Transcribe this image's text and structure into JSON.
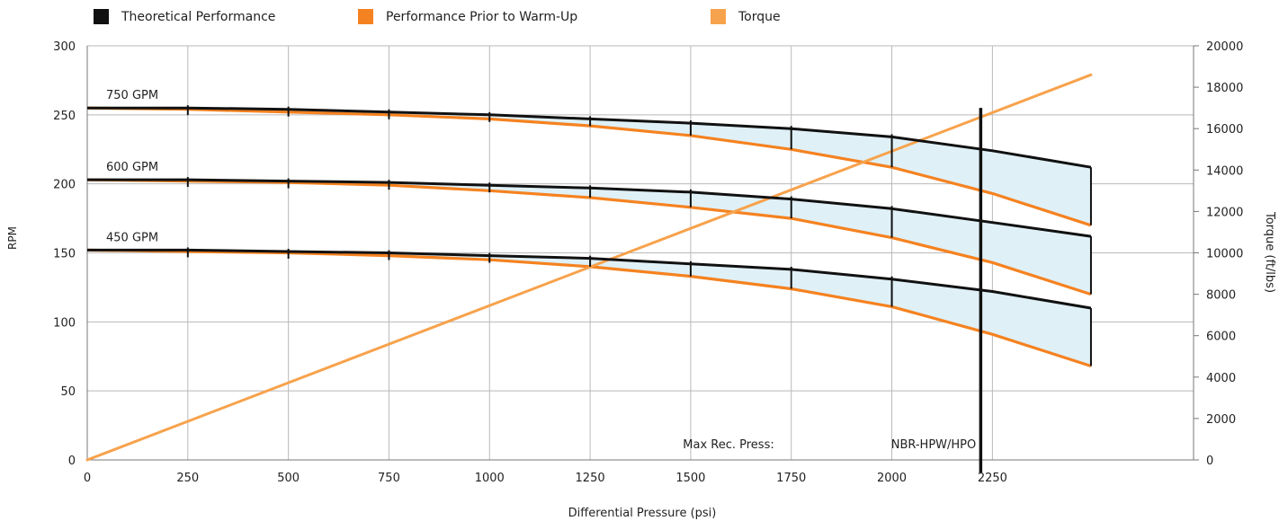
{
  "legend": [
    {
      "label": "Theoretical Performance",
      "color": "#111111"
    },
    {
      "label": "Performance Prior to Warm-Up",
      "color": "#f58220"
    },
    {
      "label": "Torque",
      "color": "#f7a24c"
    }
  ],
  "chart_data": {
    "type": "line",
    "xlabel": "Differential Pressure (psi)",
    "ylabel": "RPM",
    "y2label": "Torque (ft/lbs)",
    "xlim": [
      0,
      2750
    ],
    "ylim": [
      0,
      300
    ],
    "y2lim": [
      0,
      20000
    ],
    "x_ticks": [
      0,
      250,
      500,
      750,
      1000,
      1250,
      1500,
      1750,
      2000,
      2250
    ],
    "y_ticks": [
      0,
      50,
      100,
      150,
      200,
      250,
      300
    ],
    "y2_ticks": [
      0,
      2000,
      4000,
      6000,
      8000,
      10000,
      12000,
      14000,
      16000,
      18000,
      20000
    ],
    "grid": true,
    "legend_position": "top",
    "colors": {
      "theoretical": "#111111",
      "warmup": "#f58220",
      "torque": "#f7a24c",
      "band": "#dff0f7",
      "grid": "#b9b9b9"
    },
    "series": [
      {
        "flow_label": "750 GPM",
        "theoretical": {
          "x": [
            0,
            250,
            500,
            750,
            1000,
            1250,
            1500,
            1750,
            2000,
            2250,
            2495
          ],
          "y": [
            255,
            255,
            254,
            252,
            250,
            247,
            244,
            240,
            234,
            224,
            212
          ]
        },
        "warmup": {
          "x": [
            0,
            250,
            500,
            750,
            1000,
            1250,
            1500,
            1750,
            2000,
            2250,
            2495
          ],
          "y": [
            255,
            254,
            252,
            250,
            247,
            242,
            235,
            225,
            212,
            193,
            170
          ]
        }
      },
      {
        "flow_label": "600 GPM",
        "theoretical": {
          "x": [
            0,
            250,
            500,
            750,
            1000,
            1250,
            1500,
            1750,
            2000,
            2250,
            2495
          ],
          "y": [
            203,
            203,
            202,
            201,
            199,
            197,
            194,
            189,
            182,
            172,
            162
          ]
        },
        "warmup": {
          "x": [
            0,
            250,
            500,
            750,
            1000,
            1250,
            1500,
            1750,
            2000,
            2250,
            2495
          ],
          "y": [
            203,
            202,
            201,
            199,
            195,
            190,
            183,
            175,
            161,
            143,
            120
          ]
        }
      },
      {
        "flow_label": "450 GPM",
        "theoretical": {
          "x": [
            0,
            250,
            500,
            750,
            1000,
            1250,
            1500,
            1750,
            2000,
            2250,
            2495
          ],
          "y": [
            152,
            152,
            151,
            150,
            148,
            146,
            142,
            138,
            131,
            122,
            110
          ]
        },
        "warmup": {
          "x": [
            0,
            250,
            500,
            750,
            1000,
            1250,
            1500,
            1750,
            2000,
            2250,
            2495
          ],
          "y": [
            152,
            151,
            150,
            148,
            145,
            140,
            133,
            124,
            111,
            91,
            68
          ]
        }
      }
    ],
    "torque": {
      "x": [
        0,
        2495
      ],
      "y": [
        0,
        18600
      ]
    },
    "marker_ticks_x": [
      250,
      500,
      750,
      1000,
      1250,
      1500,
      1750,
      2000
    ],
    "max_rec_press": {
      "label": "Max Rec. Press:",
      "x": 2250,
      "y_top": 255,
      "note": "NBR-HPW/HPO"
    }
  }
}
